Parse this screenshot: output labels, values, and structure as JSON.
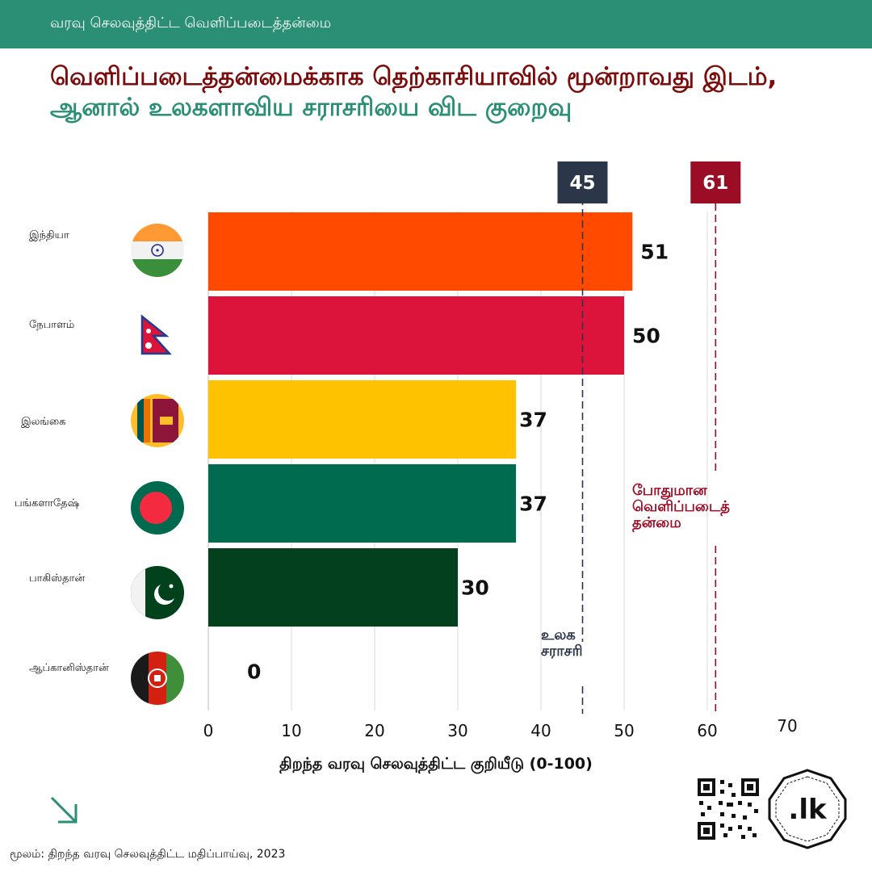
{
  "header": {
    "topic": "வரவு செலவுத்திட்ட  வெளிப்படைத்தன்மை"
  },
  "title": {
    "part1": "வெளிப்படைத்தன்மைக்காக தெற்காசியாவில் மூன்றாவது இடம்,",
    "part2": "ஆனால் உலகளாவிய சராசரியை விட குறைவு"
  },
  "chart_data": {
    "type": "bar",
    "orientation": "horizontal",
    "categories": [
      "இந்தியா",
      "நேபாளம்",
      "இலங்கை",
      "பங்களாதேஷ்",
      "பாகிஸ்தான்",
      "ஆப்கானிஸ்தான்"
    ],
    "values": [
      51,
      50,
      37,
      37,
      30,
      0
    ],
    "value_labels": [
      "51",
      "50",
      "37",
      "37",
      "30",
      "0"
    ],
    "colors": [
      "#ff4a00",
      "#dc143c",
      "#ffc200",
      "#006b4f",
      "#03411e",
      "#ffffff"
    ],
    "xlabel": "திறந்த வரவு செலவுத்திட்ட குறியீடு (0-100)",
    "xlim": [
      0,
      70
    ],
    "xticks": [
      "0",
      "10",
      "20",
      "30",
      "40",
      "50",
      "60",
      "70"
    ],
    "grid": true,
    "reference_lines": [
      {
        "value": 45,
        "badge": "45",
        "label_lines": [
          "உலக",
          "சராசரி"
        ],
        "color": "#2b3648"
      },
      {
        "value": 61,
        "badge": "61",
        "label_lines": [
          "போதுமான",
          "வெளிப்படைத்",
          "தன்மை"
        ],
        "color": "#9b0c25"
      }
    ]
  },
  "flags": [
    "india-flag-icon",
    "nepal-flag-icon",
    "sri-lanka-flag-icon",
    "bangladesh-flag-icon",
    "pakistan-flag-icon",
    "afghanistan-flag-icon"
  ],
  "footer": {
    "source": "மூலம்: திறந்த வரவு செலவுத்திட்ட மதிப்பாய்வு, 2023",
    "logo_text": ".lk"
  }
}
